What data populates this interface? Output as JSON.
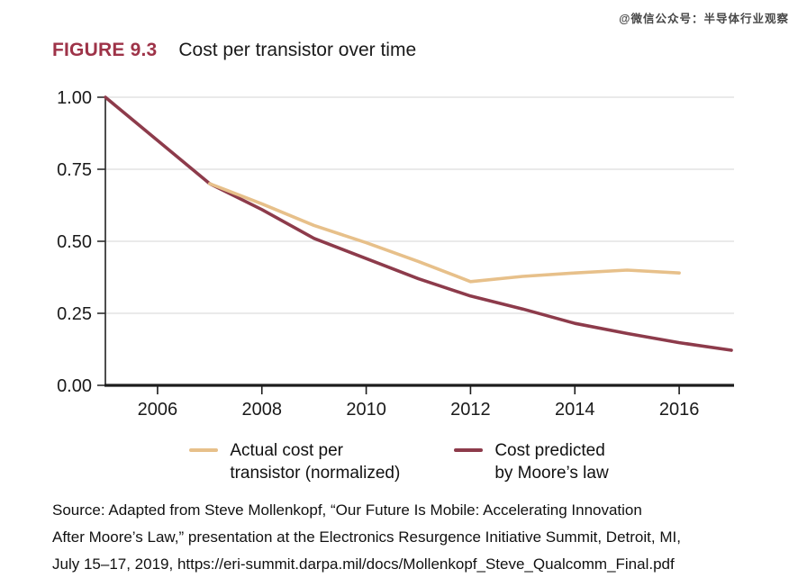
{
  "watermark": "@微信公众号：半导体行业观察",
  "figure": {
    "label": "FIGURE 9.3",
    "title": "Cost per transistor over time"
  },
  "chart_data": {
    "type": "line",
    "title": "Cost per transistor over time",
    "xlabel": "",
    "ylabel": "",
    "xlim": [
      2005,
      2017
    ],
    "ylim": [
      0,
      1
    ],
    "grid": true,
    "legend_position": "bottom",
    "x_ticks": [
      2006,
      2008,
      2010,
      2012,
      2014,
      2016
    ],
    "y_ticks": [
      "1.00",
      "0.75",
      "0.50",
      "0.25",
      "0.00"
    ],
    "series": [
      {
        "name": "Actual cost per transistor (normalized)",
        "legend_lines": [
          "Actual cost per",
          "transistor (normalized)"
        ],
        "color": "#e7c08a",
        "x": [
          2007,
          2008,
          2009,
          2010,
          2011,
          2012,
          2013,
          2014,
          2015,
          2016
        ],
        "values": [
          0.7,
          0.63,
          0.555,
          0.495,
          0.43,
          0.36,
          0.378,
          0.39,
          0.4,
          0.39
        ]
      },
      {
        "name": "Cost predicted by Moore's law",
        "legend_lines": [
          "Cost predicted",
          "by Moore’s law"
        ],
        "color": "#8d3b4b",
        "x": [
          2005,
          2006,
          2007,
          2008,
          2009,
          2010,
          2011,
          2012,
          2013,
          2014,
          2015,
          2016,
          2017
        ],
        "values": [
          1.0,
          0.85,
          0.7,
          0.61,
          0.51,
          0.44,
          0.37,
          0.31,
          0.265,
          0.215,
          0.18,
          0.148,
          0.122
        ]
      }
    ]
  },
  "source": {
    "lines": [
      "Source: Adapted from Steve Mollenkopf, “Our Future Is Mobile: Accelerating Innovation",
      "After Moore’s Law,” presentation at the Electronics Resurgence Initiative Summit, Detroit, MI,",
      "July 15–17, 2019, https://eri-summit.darpa.mil/docs/Mollenkopf_Steve_Qualcomm_Final.pdf"
    ]
  },
  "colors": {
    "accent": "#9e3348",
    "axis": "#1c1c1c",
    "y_axis": "#2e2e2e",
    "grid": "#e4e4e4",
    "tick_label": "#1a1a1a"
  }
}
